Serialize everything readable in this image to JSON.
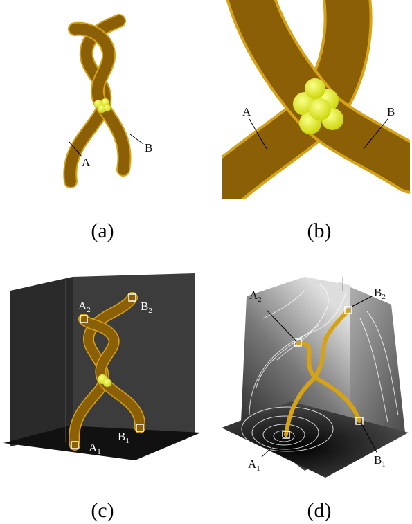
{
  "panels": [
    {
      "caption": "(a)",
      "labels": [
        {
          "letter": "A"
        },
        {
          "letter": "B"
        }
      ]
    },
    {
      "caption": "(b)",
      "labels": [
        {
          "letter": "A"
        },
        {
          "letter": "B"
        }
      ]
    },
    {
      "caption": "(c)",
      "labels": [
        {
          "letter": "A",
          "sub": "2"
        },
        {
          "letter": "B",
          "sub": "2"
        },
        {
          "letter": "A",
          "sub": "1"
        },
        {
          "letter": "B",
          "sub": "1"
        }
      ]
    },
    {
      "caption": "(d)",
      "labels": [
        {
          "letter": "A",
          "sub": "2"
        },
        {
          "letter": "B",
          "sub": "2"
        },
        {
          "letter": "A",
          "sub": "1"
        },
        {
          "letter": "B",
          "sub": "1"
        }
      ]
    }
  ]
}
